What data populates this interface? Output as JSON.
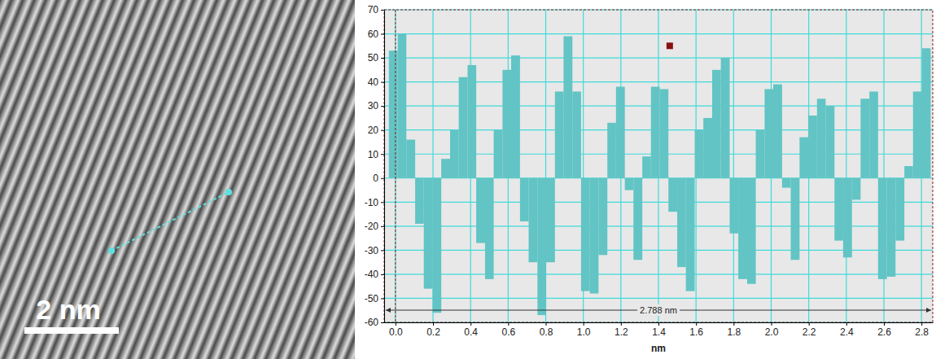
{
  "image": {
    "scale_bar": "2 nm"
  },
  "chart_data": {
    "type": "bar",
    "x_label": "nm",
    "annotation": "2.788 nm",
    "color": "#62c4c4",
    "grid": true,
    "xlim": [
      -0.06,
      2.86
    ],
    "ylim": [
      -60,
      70
    ],
    "xticks": [
      {
        "value": 0,
        "label": "0.0"
      },
      {
        "value": 0.2,
        "label": "0.2"
      },
      {
        "value": 0.4,
        "label": "0.4"
      },
      {
        "value": 0.6,
        "label": "0.6"
      },
      {
        "value": 0.8,
        "label": "0.8"
      },
      {
        "value": 1.0,
        "label": "1.0"
      },
      {
        "value": 1.2,
        "label": "1.2"
      },
      {
        "value": 1.4,
        "label": "1.4"
      },
      {
        "value": 1.6,
        "label": "1.6"
      },
      {
        "value": 1.8,
        "label": "1.8"
      },
      {
        "value": 2.0,
        "label": "2.0"
      },
      {
        "value": 2.2,
        "label": "2.2"
      },
      {
        "value": 2.4,
        "label": "2.4"
      },
      {
        "value": 2.6,
        "label": "2.6"
      },
      {
        "value": 2.8,
        "label": "2.8"
      }
    ],
    "yticks": [
      -60,
      -50,
      -40,
      -30,
      -20,
      -10,
      0,
      10,
      20,
      30,
      40,
      50,
      60,
      70
    ],
    "cursor": [
      1.46,
      55
    ],
    "x": [
      -0.035,
      0.012,
      0.058,
      0.105,
      0.151,
      0.198,
      0.244,
      0.291,
      0.337,
      0.384,
      0.43,
      0.477,
      0.523,
      0.57,
      0.616,
      0.663,
      0.709,
      0.756,
      0.802,
      0.849,
      0.895,
      0.942,
      0.988,
      1.035,
      1.081,
      1.128,
      1.174,
      1.221,
      1.267,
      1.314,
      1.36,
      1.407,
      1.453,
      1.5,
      1.546,
      1.593,
      1.639,
      1.686,
      1.732,
      1.779,
      1.825,
      1.872,
      1.918,
      1.965,
      2.011,
      2.058,
      2.104,
      2.151,
      2.197,
      2.244,
      2.29,
      2.337,
      2.383,
      2.43,
      2.476,
      2.523,
      2.569,
      2.616,
      2.662,
      2.709,
      2.755,
      2.802
    ],
    "values": [
      53,
      60,
      16,
      -19,
      -46,
      -56,
      8,
      20,
      42,
      47,
      -27,
      -42,
      20,
      45,
      51,
      -18,
      -35,
      -57,
      -35,
      36,
      59,
      36,
      -47,
      -48,
      -32,
      23,
      38,
      -5,
      -34,
      9,
      38,
      37,
      -14,
      -37,
      -47,
      20,
      25,
      45,
      50,
      -23,
      -42,
      -44,
      20,
      37,
      39,
      -4,
      -34,
      17,
      26,
      33,
      30,
      -26,
      -33,
      -9,
      33,
      36,
      -42,
      -41,
      -26,
      5,
      36,
      54
    ]
  }
}
